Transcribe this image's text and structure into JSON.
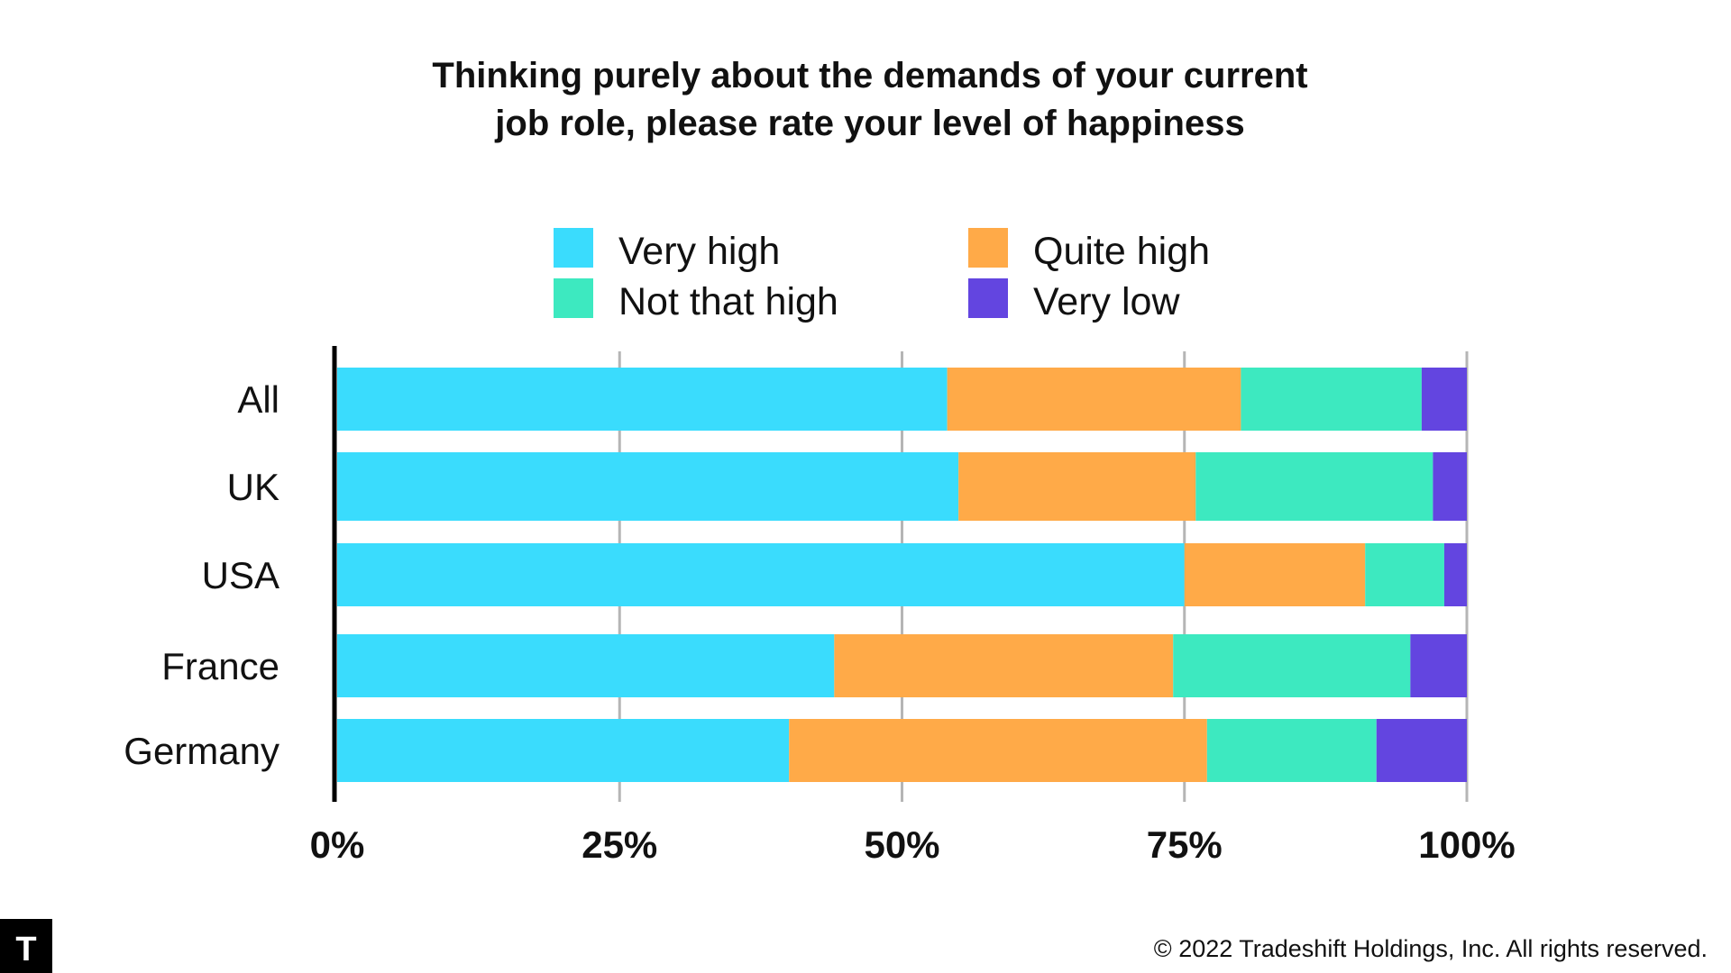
{
  "chart_data": {
    "type": "bar",
    "orientation": "horizontal",
    "stacked": true,
    "title_lines": [
      "Thinking purely about the demands of your current",
      "job role, please rate your level of happiness"
    ],
    "categories": [
      "All",
      "UK",
      "USA",
      "France",
      "Germany"
    ],
    "series": [
      {
        "name": "Very high",
        "color": "#3ADCFD",
        "values": [
          54,
          55,
          75,
          44,
          40
        ]
      },
      {
        "name": "Quite high",
        "color": "#FFAA48",
        "values": [
          26,
          21,
          16,
          30,
          37
        ]
      },
      {
        "name": "Not that high",
        "color": "#3DE9C0",
        "values": [
          16,
          21,
          7,
          21,
          15
        ]
      },
      {
        "name": "Very low",
        "color": "#6345E0",
        "values": [
          4,
          3,
          2,
          5,
          8
        ]
      }
    ],
    "xlim": [
      0,
      100
    ],
    "x_ticks": [
      0,
      25,
      50,
      75,
      100
    ],
    "x_tick_labels": [
      "0%",
      "25%",
      "50%",
      "75%",
      "100%"
    ],
    "grid": true,
    "legend_position": "top"
  },
  "footer": {
    "copyright": "© 2022 Tradeshift Holdings, Inc. All rights reserved.",
    "logo_letter": "T"
  }
}
